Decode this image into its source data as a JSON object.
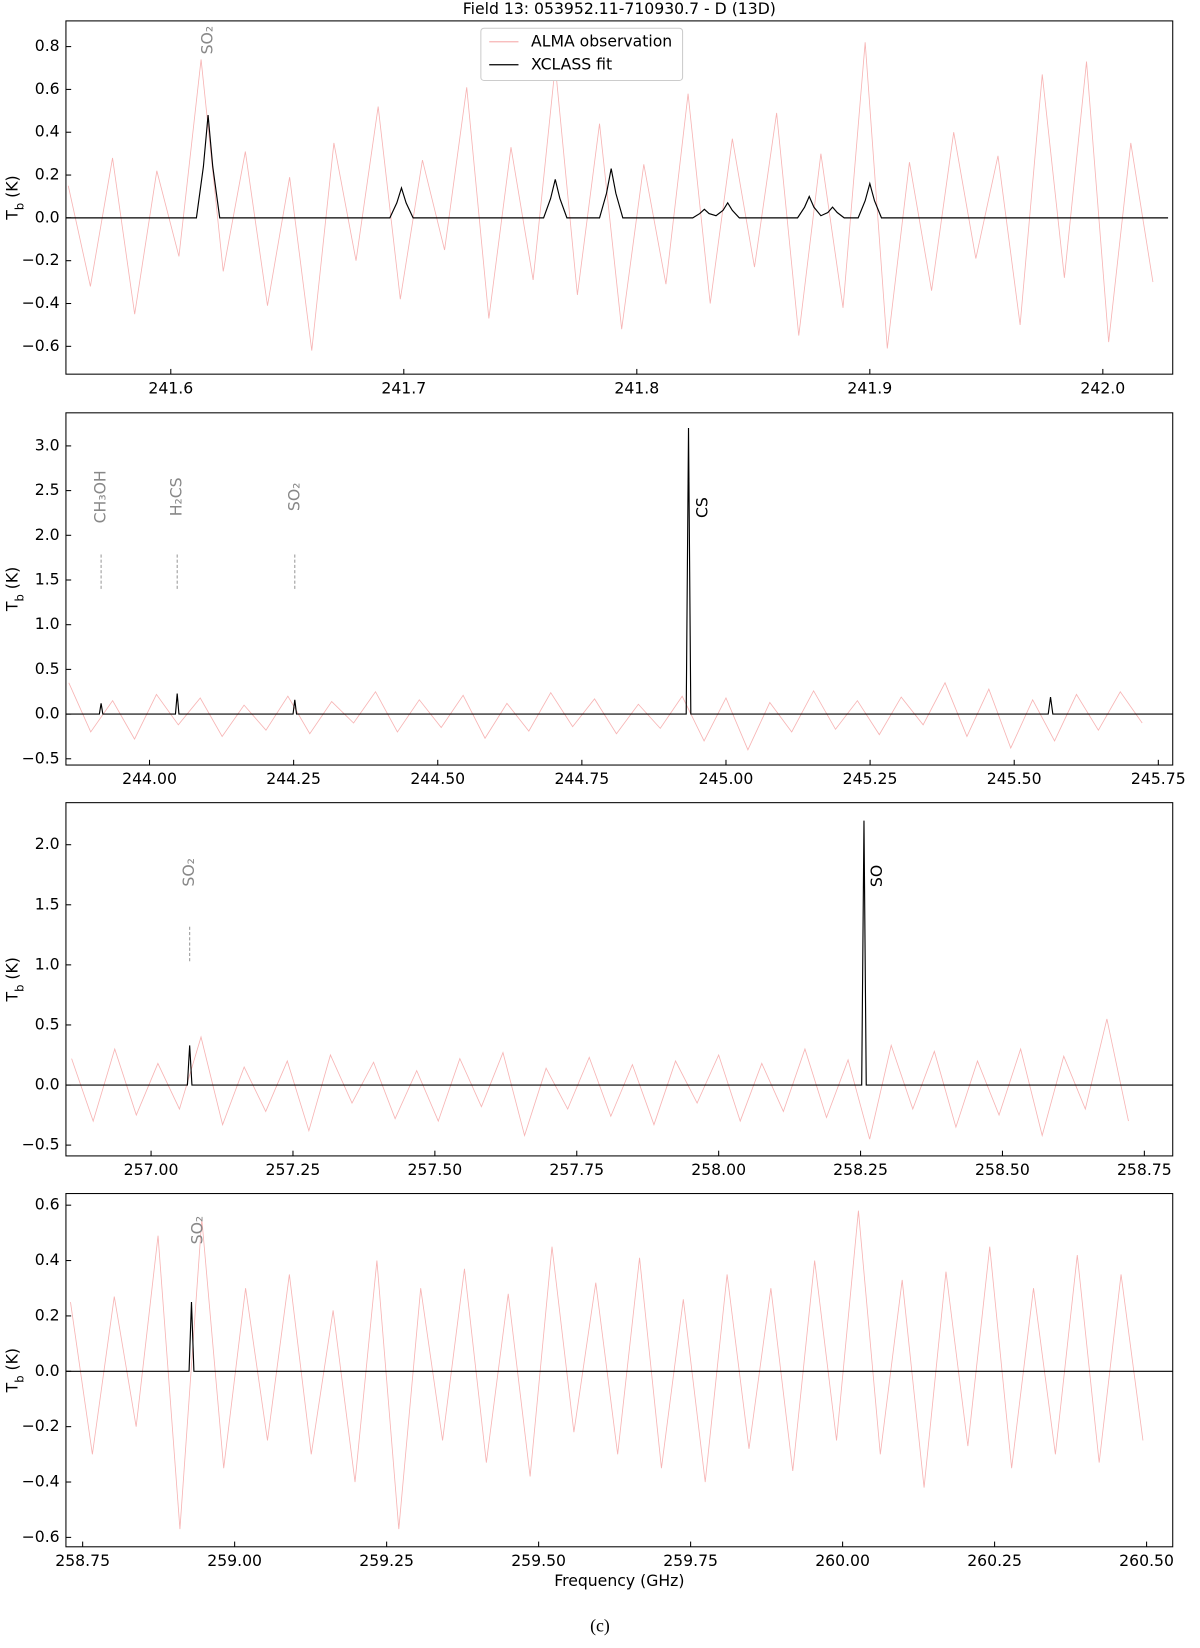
{
  "caption": "(c)",
  "chart_data": [
    {
      "type": "line",
      "title": "Field 13: 053952.11-710930.7 - D (13D)",
      "ylabel": {
        "main": "T",
        "sub": "b",
        "rest": " (K)"
      },
      "xlim": [
        241.555,
        242.03
      ],
      "ylim": [
        -0.73,
        0.92
      ],
      "xticks": [
        241.6,
        241.7,
        241.8,
        241.9,
        {
          "value": 242.0,
          "label": "242.0"
        }
      ],
      "yticks": [
        {
          "value": -0.6,
          "label": "−0.6"
        },
        {
          "value": -0.4,
          "label": "−0.4"
        },
        {
          "value": -0.2,
          "label": "−0.2"
        },
        {
          "value": 0,
          "label": "0.0"
        },
        0.2,
        0.4,
        0.6,
        0.8
      ],
      "legend": "upper center",
      "series": [
        {
          "name": "ALMA observation",
          "color": "#f7b4b4",
          "x": [
            241.556,
            241.5655,
            241.575,
            241.5845,
            241.594,
            241.6035,
            241.613,
            241.6225,
            241.632,
            241.6415,
            241.651,
            241.6605,
            241.67,
            241.6795,
            241.689,
            241.6985,
            241.708,
            241.7175,
            241.727,
            241.7365,
            241.746,
            241.7555,
            241.765,
            241.7745,
            241.784,
            241.7935,
            241.803,
            241.8125,
            241.822,
            241.8315,
            241.841,
            241.8505,
            241.86,
            241.8695,
            241.879,
            241.8885,
            241.898,
            241.9075,
            241.917,
            241.9265,
            241.936,
            241.9455,
            241.955,
            241.9645,
            241.974,
            241.9835,
            241.993,
            242.0025,
            242.012,
            242.0215
          ],
          "values": [
            0.15,
            -0.32,
            0.28,
            -0.45,
            0.22,
            -0.18,
            0.74,
            -0.25,
            0.31,
            -0.41,
            0.19,
            -0.62,
            0.35,
            -0.2,
            0.52,
            -0.38,
            0.27,
            -0.15,
            0.61,
            -0.47,
            0.33,
            -0.29,
            0.71,
            -0.36,
            0.44,
            -0.52,
            0.25,
            -0.31,
            0.58,
            -0.4,
            0.37,
            -0.23,
            0.49,
            -0.55,
            0.3,
            -0.42,
            0.82,
            -0.61,
            0.26,
            -0.34,
            0.4,
            -0.19,
            0.29,
            -0.5,
            0.67,
            -0.28,
            0.73,
            -0.58,
            0.35,
            -0.3
          ]
        },
        {
          "name": "XCLASS fit",
          "color": "#000000",
          "x": [
            241.555,
            241.611,
            241.614,
            241.616,
            241.618,
            241.621,
            241.694,
            241.697,
            241.699,
            241.701,
            241.704,
            241.76,
            241.763,
            241.765,
            241.767,
            241.77,
            241.784,
            241.787,
            241.789,
            241.791,
            241.794,
            241.824,
            241.827,
            241.829,
            241.831,
            241.834,
            241.837,
            241.839,
            241.841,
            241.844,
            241.869,
            241.872,
            241.874,
            241.876,
            241.879,
            241.882,
            241.884,
            241.886,
            241.889,
            241.895,
            241.898,
            241.9,
            241.902,
            241.905,
            242.028
          ],
          "values": [
            0,
            0,
            0.24,
            0.48,
            0.24,
            0,
            0,
            0.07,
            0.14,
            0.07,
            0,
            0,
            0.09,
            0.18,
            0.09,
            0,
            0,
            0.115,
            0.23,
            0.115,
            0,
            0,
            0.02,
            0.04,
            0.02,
            0.01,
            0.035,
            0.07,
            0.035,
            0,
            0,
            0.05,
            0.1,
            0.05,
            0.01,
            0.025,
            0.05,
            0.025,
            0,
            0,
            0.08,
            0.16,
            0.08,
            0,
            0
          ]
        }
      ],
      "annotations": [
        {
          "text": "SO₂",
          "x": 241.616,
          "y": 0.83,
          "color": "#888888"
        }
      ]
    },
    {
      "type": "line",
      "ylabel": {
        "main": "T",
        "sub": "b",
        "rest": " (K)"
      },
      "xlim": [
        243.855,
        245.775
      ],
      "ylim": [
        -0.57,
        3.37
      ],
      "xticks": [
        {
          "value": 244.0,
          "label": "244.00"
        },
        244.25,
        {
          "value": 244.5,
          "label": "244.50"
        },
        244.75,
        {
          "value": 245.0,
          "label": "245.00"
        },
        245.25,
        {
          "value": 245.5,
          "label": "245.50"
        },
        245.75
      ],
      "yticks": [
        {
          "value": -0.5,
          "label": "−0.5"
        },
        {
          "value": 0,
          "label": "0.0"
        },
        0.5,
        {
          "value": 1,
          "label": "1.0"
        },
        1.5,
        {
          "value": 2,
          "label": "2.0"
        },
        2.5,
        {
          "value": 3,
          "label": "3.0"
        }
      ],
      "series": [
        {
          "color": "#f7b4b4",
          "x": [
            243.86,
            243.898,
            243.936,
            243.974,
            244.012,
            244.05,
            244.088,
            244.126,
            244.164,
            244.202,
            244.24,
            244.278,
            244.316,
            244.354,
            244.392,
            244.43,
            244.468,
            244.506,
            244.544,
            244.582,
            244.62,
            244.658,
            244.696,
            244.734,
            244.772,
            244.81,
            244.848,
            244.886,
            244.924,
            244.962,
            245.0,
            245.038,
            245.076,
            245.114,
            245.152,
            245.19,
            245.228,
            245.266,
            245.304,
            245.342,
            245.38,
            245.418,
            245.456,
            245.494,
            245.532,
            245.57,
            245.608,
            245.646,
            245.684,
            245.722
          ],
          "values": [
            0.35,
            -0.2,
            0.15,
            -0.28,
            0.22,
            -0.12,
            0.18,
            -0.25,
            0.1,
            -0.18,
            0.2,
            -0.22,
            0.14,
            -0.1,
            0.25,
            -0.2,
            0.16,
            -0.15,
            0.21,
            -0.27,
            0.12,
            -0.19,
            0.24,
            -0.14,
            0.17,
            -0.22,
            0.11,
            -0.16,
            0.2,
            -0.3,
            0.18,
            -0.4,
            0.13,
            -0.2,
            0.26,
            -0.17,
            0.15,
            -0.23,
            0.19,
            -0.12,
            0.35,
            -0.25,
            0.28,
            -0.38,
            0.16,
            -0.3,
            0.22,
            -0.18,
            0.25,
            -0.1
          ]
        },
        {
          "color": "#000000",
          "x": [
            243.855,
            243.913,
            243.916,
            243.919,
            244.045,
            244.048,
            244.051,
            244.249,
            244.252,
            244.255,
            244.931,
            244.935,
            244.939,
            245.559,
            245.563,
            245.567,
            245.775
          ],
          "values": [
            0,
            0,
            0.12,
            0,
            0,
            0.23,
            0,
            0,
            0.16,
            0,
            0,
            3.2,
            0,
            0,
            0.19,
            0,
            0
          ]
        }
      ],
      "annotations": [
        {
          "text": "CH₃OH",
          "x": 243.916,
          "y": 2.43,
          "color": "#888888",
          "line": [
            1.4,
            1.8
          ]
        },
        {
          "text": "H₂CS",
          "x": 244.048,
          "y": 2.43,
          "color": "#888888",
          "line": [
            1.4,
            1.8
          ]
        },
        {
          "text": "SO₂",
          "x": 244.252,
          "y": 2.43,
          "color": "#888888",
          "line": [
            1.4,
            1.8
          ]
        },
        {
          "text": "CS",
          "x": 244.96,
          "y": 2.31,
          "color": "#000000"
        }
      ]
    },
    {
      "type": "line",
      "ylabel": {
        "main": "T",
        "sub": "b",
        "rest": " (K)"
      },
      "xlim": [
        256.85,
        258.8
      ],
      "ylim": [
        -0.59,
        2.35
      ],
      "xticks": [
        {
          "value": 257.0,
          "label": "257.00"
        },
        257.25,
        {
          "value": 257.5,
          "label": "257.50"
        },
        257.75,
        {
          "value": 258.0,
          "label": "258.00"
        },
        258.25,
        {
          "value": 258.5,
          "label": "258.50"
        },
        258.75
      ],
      "yticks": [
        {
          "value": -0.5,
          "label": "−0.5"
        },
        {
          "value": 0,
          "label": "0.0"
        },
        0.5,
        {
          "value": 1,
          "label": "1.0"
        },
        1.5,
        {
          "value": 2,
          "label": "2.0"
        }
      ],
      "series": [
        {
          "color": "#f7b4b4",
          "x": [
            256.86,
            256.898,
            256.936,
            256.974,
            257.012,
            257.05,
            257.088,
            257.126,
            257.164,
            257.202,
            257.24,
            257.278,
            257.316,
            257.354,
            257.392,
            257.43,
            257.468,
            257.506,
            257.544,
            257.582,
            257.62,
            257.658,
            257.696,
            257.734,
            257.772,
            257.81,
            257.848,
            257.886,
            257.924,
            257.962,
            258.0,
            258.038,
            258.076,
            258.114,
            258.152,
            258.19,
            258.228,
            258.266,
            258.304,
            258.342,
            258.38,
            258.418,
            258.456,
            258.494,
            258.532,
            258.57,
            258.608,
            258.646,
            258.684,
            258.722
          ],
          "values": [
            0.22,
            -0.3,
            0.3,
            -0.25,
            0.18,
            -0.2,
            0.4,
            -0.33,
            0.15,
            -0.22,
            0.2,
            -0.38,
            0.25,
            -0.15,
            0.19,
            -0.28,
            0.12,
            -0.3,
            0.22,
            -0.18,
            0.27,
            -0.42,
            0.14,
            -0.2,
            0.23,
            -0.26,
            0.17,
            -0.33,
            0.2,
            -0.15,
            0.25,
            -0.3,
            0.18,
            -0.22,
            0.3,
            -0.27,
            0.21,
            -0.45,
            0.33,
            -0.2,
            0.28,
            -0.35,
            0.2,
            -0.25,
            0.3,
            -0.42,
            0.24,
            -0.2,
            0.55,
            -0.3
          ]
        },
        {
          "color": "#000000",
          "x": [
            256.85,
            257.064,
            257.068,
            257.072,
            258.252,
            258.256,
            258.26,
            258.8
          ],
          "values": [
            0,
            0,
            0.33,
            0,
            0,
            2.2,
            0,
            0
          ]
        }
      ],
      "annotations": [
        {
          "text": "SO₂",
          "x": 257.068,
          "y": 1.77,
          "color": "#888888",
          "line": [
            1.03,
            1.32
          ]
        },
        {
          "text": "SO",
          "x": 258.28,
          "y": 1.74,
          "color": "#000000"
        }
      ]
    },
    {
      "type": "line",
      "ylabel": {
        "main": "T",
        "sub": "b",
        "rest": " (K)"
      },
      "xlabel": "Frequency (GHz)",
      "xlim": [
        258.7225,
        260.543
      ],
      "ylim": [
        -0.634,
        0.642
      ],
      "xticks": [
        258.75,
        {
          "value": 259.0,
          "label": "259.00"
        },
        259.25,
        {
          "value": 259.5,
          "label": "259.50"
        },
        259.75,
        {
          "value": 260.0,
          "label": "260.00"
        },
        260.25,
        {
          "value": 260.5,
          "label": "260.50"
        }
      ],
      "yticks": [
        {
          "value": -0.6,
          "label": "−0.6"
        },
        {
          "value": -0.4,
          "label": "−0.4"
        },
        {
          "value": -0.2,
          "label": "−0.2"
        },
        {
          "value": 0,
          "label": "0.0"
        },
        0.2,
        0.4,
        0.6
      ],
      "series": [
        {
          "color": "#f7b4b4",
          "x": [
            258.73,
            258.766,
            258.802,
            258.838,
            258.874,
            258.91,
            258.946,
            258.982,
            259.018,
            259.054,
            259.09,
            259.126,
            259.162,
            259.198,
            259.234,
            259.27,
            259.306,
            259.342,
            259.378,
            259.414,
            259.45,
            259.486,
            259.522,
            259.558,
            259.594,
            259.63,
            259.666,
            259.702,
            259.738,
            259.774,
            259.81,
            259.846,
            259.882,
            259.918,
            259.954,
            259.99,
            260.026,
            260.062,
            260.098,
            260.134,
            260.17,
            260.206,
            260.242,
            260.278,
            260.314,
            260.35,
            260.386,
            260.422,
            260.458,
            260.494
          ],
          "values": [
            0.25,
            -0.3,
            0.27,
            -0.2,
            0.49,
            -0.57,
            0.55,
            -0.35,
            0.3,
            -0.25,
            0.35,
            -0.3,
            0.22,
            -0.4,
            0.4,
            -0.57,
            0.3,
            -0.25,
            0.37,
            -0.33,
            0.28,
            -0.38,
            0.45,
            -0.22,
            0.32,
            -0.3,
            0.41,
            -0.35,
            0.26,
            -0.4,
            0.35,
            -0.28,
            0.3,
            -0.36,
            0.4,
            -0.25,
            0.58,
            -0.3,
            0.33,
            -0.42,
            0.36,
            -0.27,
            0.45,
            -0.35,
            0.3,
            -0.3,
            0.42,
            -0.33,
            0.35,
            -0.25
          ]
        },
        {
          "color": "#000000",
          "x": [
            258.7225,
            258.925,
            258.929,
            258.933,
            260.543
          ],
          "values": [
            0,
            0,
            0.25,
            0,
            0
          ]
        }
      ],
      "annotations": [
        {
          "text": "SO₂",
          "x": 258.94,
          "y": 0.51,
          "color": "#888888"
        }
      ]
    }
  ]
}
